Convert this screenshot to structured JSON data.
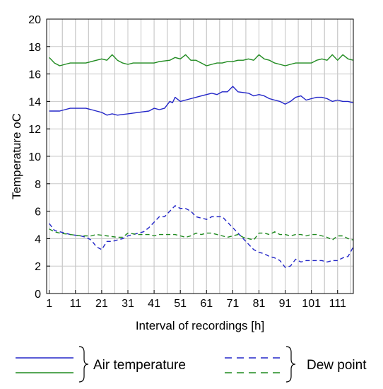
{
  "chart_data": {
    "type": "line",
    "xlabel": "Interval of recordings [h]",
    "ylabel": "Temperature oC",
    "xlim": [
      0,
      117
    ],
    "ylim": [
      0,
      20
    ],
    "x_ticks": [
      1,
      11,
      21,
      31,
      41,
      51,
      61,
      71,
      81,
      91,
      101,
      111
    ],
    "y_ticks": [
      0,
      2,
      4,
      6,
      8,
      10,
      12,
      14,
      16,
      18,
      20
    ],
    "grid": true,
    "legend_position": "bottom",
    "legend_groups": [
      {
        "label": "Air temperature",
        "style": "solid",
        "series_colors": [
          "#2326c8",
          "#1f8a1f"
        ]
      },
      {
        "label": "Dew point",
        "style": "dashed",
        "series_colors": [
          "#2326c8",
          "#1f8a1f"
        ]
      }
    ],
    "series": [
      {
        "style": "solid",
        "color": "#1f8a1f",
        "points": [
          [
            1,
            17.2
          ],
          [
            3,
            16.8
          ],
          [
            5,
            16.6
          ],
          [
            7,
            16.7
          ],
          [
            9,
            16.8
          ],
          [
            11,
            16.8
          ],
          [
            13,
            16.8
          ],
          [
            15,
            16.8
          ],
          [
            17,
            16.9
          ],
          [
            19,
            17.0
          ],
          [
            21,
            17.1
          ],
          [
            23,
            17.0
          ],
          [
            25,
            17.4
          ],
          [
            27,
            17.0
          ],
          [
            29,
            16.8
          ],
          [
            31,
            16.7
          ],
          [
            33,
            16.8
          ],
          [
            35,
            16.8
          ],
          [
            37,
            16.8
          ],
          [
            41,
            16.8
          ],
          [
            43,
            16.9
          ],
          [
            47,
            17.0
          ],
          [
            49,
            17.2
          ],
          [
            51,
            17.1
          ],
          [
            53,
            17.4
          ],
          [
            55,
            17.0
          ],
          [
            57,
            17.0
          ],
          [
            59,
            16.8
          ],
          [
            61,
            16.6
          ],
          [
            63,
            16.7
          ],
          [
            65,
            16.8
          ],
          [
            67,
            16.8
          ],
          [
            69,
            16.9
          ],
          [
            71,
            16.9
          ],
          [
            73,
            17.0
          ],
          [
            75,
            17.0
          ],
          [
            77,
            17.1
          ],
          [
            79,
            17.0
          ],
          [
            81,
            17.4
          ],
          [
            83,
            17.1
          ],
          [
            85,
            17.0
          ],
          [
            87,
            16.8
          ],
          [
            89,
            16.7
          ],
          [
            91,
            16.6
          ],
          [
            93,
            16.7
          ],
          [
            95,
            16.8
          ],
          [
            97,
            16.8
          ],
          [
            99,
            16.8
          ],
          [
            101,
            16.8
          ],
          [
            103,
            17.0
          ],
          [
            105,
            17.1
          ],
          [
            107,
            17.0
          ],
          [
            109,
            17.4
          ],
          [
            111,
            17.0
          ],
          [
            113,
            17.4
          ],
          [
            115,
            17.1
          ],
          [
            117,
            17.0
          ]
        ]
      },
      {
        "style": "solid",
        "color": "#2326c8",
        "points": [
          [
            1,
            13.3
          ],
          [
            5,
            13.3
          ],
          [
            7,
            13.4
          ],
          [
            9,
            13.5
          ],
          [
            15,
            13.5
          ],
          [
            17,
            13.4
          ],
          [
            19,
            13.3
          ],
          [
            21,
            13.2
          ],
          [
            23,
            13.0
          ],
          [
            25,
            13.1
          ],
          [
            27,
            13.0
          ],
          [
            31,
            13.1
          ],
          [
            35,
            13.2
          ],
          [
            39,
            13.3
          ],
          [
            41,
            13.5
          ],
          [
            43,
            13.4
          ],
          [
            45,
            13.5
          ],
          [
            47,
            14.0
          ],
          [
            48,
            13.9
          ],
          [
            49,
            14.3
          ],
          [
            51,
            14.0
          ],
          [
            55,
            14.2
          ],
          [
            57,
            14.3
          ],
          [
            59,
            14.4
          ],
          [
            61,
            14.5
          ],
          [
            63,
            14.6
          ],
          [
            65,
            14.5
          ],
          [
            67,
            14.7
          ],
          [
            69,
            14.7
          ],
          [
            71,
            15.1
          ],
          [
            73,
            14.7
          ],
          [
            77,
            14.6
          ],
          [
            79,
            14.4
          ],
          [
            81,
            14.5
          ],
          [
            83,
            14.4
          ],
          [
            85,
            14.2
          ],
          [
            87,
            14.1
          ],
          [
            89,
            14.0
          ],
          [
            91,
            13.8
          ],
          [
            93,
            14.0
          ],
          [
            95,
            14.3
          ],
          [
            97,
            14.4
          ],
          [
            99,
            14.1
          ],
          [
            101,
            14.2
          ],
          [
            103,
            14.3
          ],
          [
            105,
            14.3
          ],
          [
            107,
            14.2
          ],
          [
            109,
            14.0
          ],
          [
            111,
            14.1
          ],
          [
            113,
            14.0
          ],
          [
            115,
            14.0
          ],
          [
            117,
            13.9
          ]
        ]
      },
      {
        "style": "dashed",
        "color": "#2326c8",
        "points": [
          [
            1,
            5.1
          ],
          [
            3,
            4.6
          ],
          [
            5,
            4.5
          ],
          [
            7,
            4.4
          ],
          [
            9,
            4.3
          ],
          [
            13,
            4.2
          ],
          [
            15,
            4.1
          ],
          [
            17,
            3.9
          ],
          [
            19,
            3.4
          ],
          [
            21,
            3.2
          ],
          [
            23,
            3.8
          ],
          [
            25,
            3.8
          ],
          [
            27,
            3.9
          ],
          [
            29,
            4.0
          ],
          [
            31,
            4.2
          ],
          [
            33,
            4.3
          ],
          [
            37,
            4.5
          ],
          [
            39,
            4.8
          ],
          [
            41,
            5.2
          ],
          [
            43,
            5.6
          ],
          [
            45,
            5.6
          ],
          [
            47,
            6.0
          ],
          [
            49,
            6.4
          ],
          [
            51,
            6.2
          ],
          [
            53,
            6.2
          ],
          [
            55,
            6.0
          ],
          [
            57,
            5.6
          ],
          [
            59,
            5.5
          ],
          [
            61,
            5.4
          ],
          [
            63,
            5.6
          ],
          [
            65,
            5.6
          ],
          [
            67,
            5.6
          ],
          [
            69,
            5.2
          ],
          [
            71,
            4.8
          ],
          [
            73,
            4.4
          ],
          [
            75,
            4.0
          ],
          [
            77,
            3.6
          ],
          [
            79,
            3.2
          ],
          [
            81,
            3.0
          ],
          [
            83,
            2.9
          ],
          [
            85,
            2.7
          ],
          [
            87,
            2.6
          ],
          [
            89,
            2.4
          ],
          [
            91,
            1.9
          ],
          [
            93,
            2.0
          ],
          [
            95,
            2.5
          ],
          [
            97,
            2.3
          ],
          [
            99,
            2.4
          ],
          [
            101,
            2.4
          ],
          [
            103,
            2.4
          ],
          [
            105,
            2.4
          ],
          [
            107,
            2.3
          ],
          [
            109,
            2.4
          ],
          [
            111,
            2.4
          ],
          [
            113,
            2.6
          ],
          [
            115,
            2.7
          ],
          [
            117,
            3.4
          ]
        ]
      },
      {
        "style": "dashed",
        "color": "#1f8a1f",
        "points": [
          [
            1,
            4.7
          ],
          [
            3,
            4.5
          ],
          [
            5,
            4.4
          ],
          [
            9,
            4.3
          ],
          [
            13,
            4.2
          ],
          [
            17,
            4.2
          ],
          [
            19,
            4.3
          ],
          [
            23,
            4.2
          ],
          [
            27,
            4.1
          ],
          [
            29,
            4.1
          ],
          [
            31,
            4.4
          ],
          [
            35,
            4.3
          ],
          [
            39,
            4.3
          ],
          [
            41,
            4.2
          ],
          [
            43,
            4.3
          ],
          [
            47,
            4.3
          ],
          [
            49,
            4.3
          ],
          [
            51,
            4.2
          ],
          [
            53,
            4.1
          ],
          [
            55,
            4.2
          ],
          [
            57,
            4.4
          ],
          [
            59,
            4.3
          ],
          [
            61,
            4.4
          ],
          [
            63,
            4.4
          ],
          [
            65,
            4.3
          ],
          [
            67,
            4.2
          ],
          [
            69,
            4.1
          ],
          [
            71,
            4.2
          ],
          [
            73,
            4.3
          ],
          [
            75,
            4.1
          ],
          [
            77,
            4.0
          ],
          [
            79,
            3.9
          ],
          [
            81,
            4.4
          ],
          [
            83,
            4.4
          ],
          [
            85,
            4.3
          ],
          [
            87,
            4.5
          ],
          [
            89,
            4.3
          ],
          [
            91,
            4.3
          ],
          [
            93,
            4.2
          ],
          [
            95,
            4.3
          ],
          [
            97,
            4.3
          ],
          [
            99,
            4.2
          ],
          [
            101,
            4.3
          ],
          [
            103,
            4.3
          ],
          [
            105,
            4.2
          ],
          [
            107,
            4.1
          ],
          [
            109,
            3.9
          ],
          [
            111,
            4.2
          ],
          [
            113,
            4.2
          ],
          [
            115,
            4.0
          ],
          [
            117,
            3.9
          ]
        ]
      }
    ]
  }
}
